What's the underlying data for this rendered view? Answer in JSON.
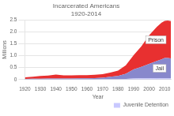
{
  "chart_data": {
    "type": "area",
    "stacked": true,
    "title": [
      "Incarcerated Americans",
      "1920-2014"
    ],
    "xlabel": "Year",
    "ylabel": "Millions",
    "x": [
      1920,
      1925,
      1930,
      1935,
      1940,
      1945,
      1950,
      1955,
      1960,
      1965,
      1970,
      1975,
      1980,
      1985,
      1990,
      1995,
      2000,
      2005,
      2008,
      2010,
      2012,
      2014
    ],
    "series": [
      {
        "name": "Juvenile Detention",
        "color": "#c8c8ff",
        "values": [
          0.008,
          0.008,
          0.009,
          0.01,
          0.01,
          0.009,
          0.009,
          0.01,
          0.011,
          0.012,
          0.015,
          0.018,
          0.022,
          0.03,
          0.04,
          0.05,
          0.055,
          0.058,
          0.055,
          0.055,
          0.052,
          0.05
        ]
      },
      {
        "name": "Jail",
        "color": "#8888cc",
        "values": [
          0.02,
          0.023,
          0.025,
          0.03,
          0.035,
          0.033,
          0.033,
          0.038,
          0.04,
          0.05,
          0.065,
          0.1,
          0.13,
          0.21,
          0.38,
          0.48,
          0.6,
          0.72,
          0.79,
          0.85,
          0.85,
          0.84
        ]
      },
      {
        "name": "Prison",
        "color": "#e83030",
        "values": [
          0.065,
          0.09,
          0.12,
          0.13,
          0.165,
          0.135,
          0.13,
          0.135,
          0.13,
          0.135,
          0.145,
          0.175,
          0.22,
          0.36,
          0.6,
          0.86,
          1.2,
          1.43,
          1.54,
          1.55,
          1.57,
          1.56
        ]
      }
    ],
    "xlim": [
      1920,
      2014
    ],
    "xticks": [
      1920,
      1930,
      1940,
      1950,
      1960,
      1970,
      1980,
      1990,
      2000,
      2010
    ],
    "ylim": [
      0,
      2.5
    ],
    "yticks": [
      0,
      0.5,
      {
        "value": 1,
        "label": "1.0"
      },
      1.5,
      {
        "value": 2,
        "label": "2.0"
      },
      2.5
    ],
    "grid": "y",
    "legend": "lower right",
    "annotations": [
      "Prison",
      "Jail"
    ]
  }
}
